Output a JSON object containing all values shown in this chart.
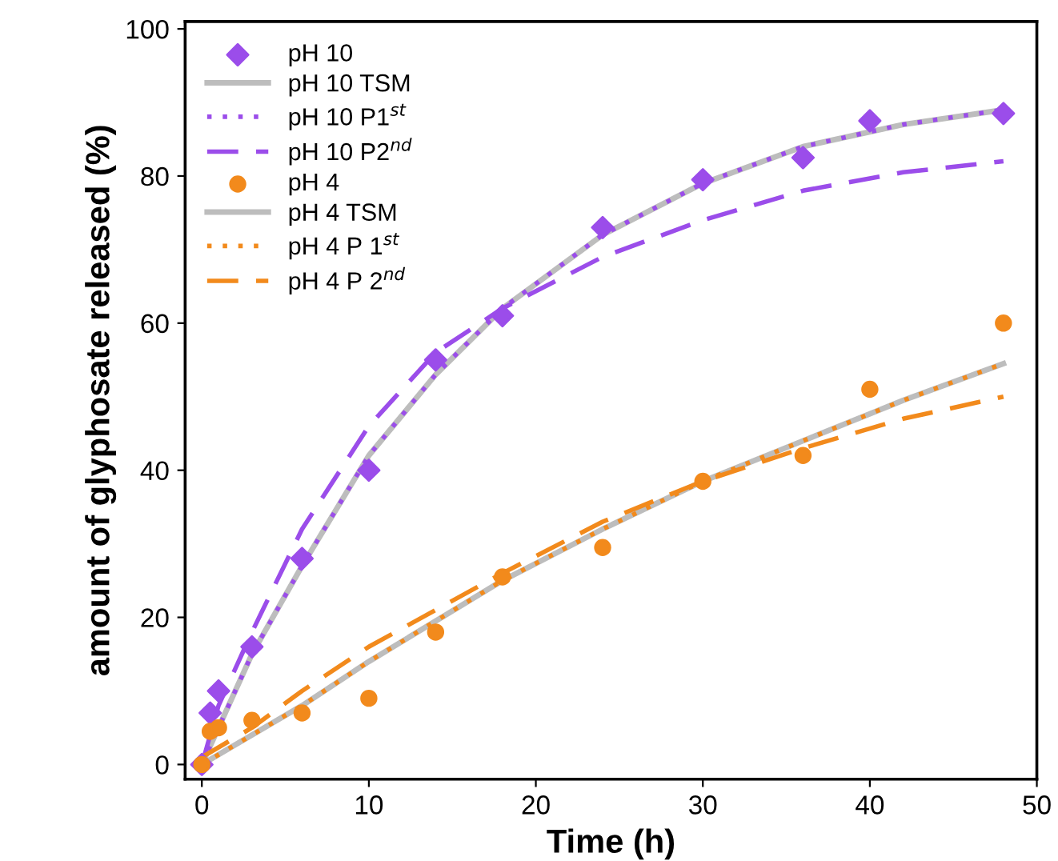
{
  "chart_data": {
    "type": "line",
    "xlabel": "Time (h)",
    "ylabel": "amount of glyphosate released (%)",
    "xlim": [
      -1,
      50
    ],
    "ylim": [
      -2,
      101
    ],
    "xticks": [
      0,
      10,
      20,
      30,
      40,
      50
    ],
    "yticks": [
      0,
      20,
      40,
      60,
      80,
      100
    ],
    "grid": false,
    "legend": "top left",
    "series": [
      {
        "name": "pH 10",
        "type": "scatter",
        "marker": "diamond",
        "color": "#9b4dea",
        "x": [
          0,
          0.5,
          1,
          3,
          6,
          10,
          14,
          18,
          24,
          30,
          36,
          40,
          48
        ],
        "values": [
          0,
          7,
          10,
          16,
          28,
          40,
          55,
          61,
          73,
          79.5,
          82.5,
          87.5,
          88.5
        ]
      },
      {
        "name": "pH 10 TSM",
        "line_style": "solid",
        "color": "#bdbdbd",
        "x": [
          0,
          3,
          6,
          10,
          14,
          18,
          24,
          30,
          36,
          42,
          48
        ],
        "values": [
          0,
          15,
          27,
          42,
          53,
          62,
          72,
          79,
          84,
          87,
          89
        ]
      },
      {
        "name": "pH 10 P1$^{st}$",
        "line_style": "dotted",
        "color": "#9b4dea",
        "x": [
          0,
          3,
          6,
          10,
          14,
          18,
          24,
          30,
          36,
          42,
          48
        ],
        "values": [
          0,
          15,
          27,
          42,
          53,
          62,
          72,
          79,
          84,
          87,
          89
        ]
      },
      {
        "name": "pH 10 P2$^{nd}$",
        "line_style": "dashed",
        "color": "#9b4dea",
        "x": [
          0,
          1,
          3,
          6,
          10,
          14,
          18,
          24,
          30,
          36,
          42,
          48
        ],
        "values": [
          0,
          8,
          18,
          32,
          46,
          56,
          62,
          69,
          74,
          78,
          80.5,
          82
        ]
      },
      {
        "name": "pH 4",
        "type": "scatter",
        "marker": "circle",
        "color": "#f28a1c",
        "x": [
          0,
          0.5,
          1,
          3,
          6,
          10,
          14,
          18,
          24,
          30,
          36,
          40,
          48
        ],
        "values": [
          0,
          4.5,
          5,
          6,
          7,
          9,
          18,
          25.5,
          29.5,
          38.5,
          42,
          51,
          60
        ]
      },
      {
        "name": "pH 4 TSM",
        "line_style": "solid",
        "color": "#bdbdbd",
        "x": [
          0,
          6,
          10,
          18,
          24,
          30,
          36,
          42,
          48
        ],
        "values": [
          0,
          8,
          14,
          25,
          32,
          38.5,
          44,
          49.5,
          54.5
        ]
      },
      {
        "name": "pH 4 P 1$^{st}$",
        "line_style": "dotted",
        "color": "#f28a1c",
        "x": [
          0,
          6,
          10,
          18,
          24,
          30,
          36,
          42,
          48
        ],
        "values": [
          0,
          8,
          14,
          25,
          32,
          38.5,
          44,
          49.5,
          54.5
        ]
      },
      {
        "name": "pH 4 P 2$^{nd}$",
        "line_style": "dashed",
        "color": "#f28a1c",
        "x": [
          0,
          3,
          6,
          10,
          18,
          24,
          30,
          36,
          42,
          48
        ],
        "values": [
          1,
          5,
          10,
          16,
          26,
          33,
          38.5,
          43,
          47,
          50
        ]
      }
    ]
  }
}
